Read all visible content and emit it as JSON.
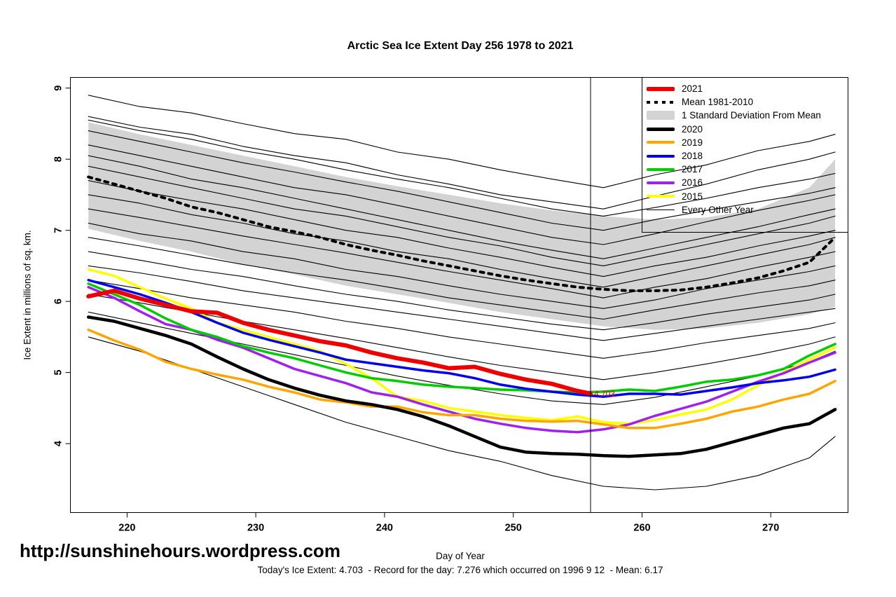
{
  "title": "Arctic Sea Ice Extent Day 256 1978 to 2021",
  "footer": {
    "url": "http://sunshinehours.wordpress.com",
    "stats": "Today's Ice Extent: 4.703  - Record for the day: 7.276 which occurred on 1996 9 12  - Mean: 6.17"
  },
  "chart_data": {
    "type": "line",
    "title": "Arctic Sea Ice Extent Day 256 1978 to 2021",
    "xlabel": "Day of Year",
    "ylabel": "Ice Extent in millions of sq. km.",
    "xlim": [
      215.6,
      276.0
    ],
    "ylim": [
      3.03,
      9.15
    ],
    "x_ticks": [
      220,
      230,
      240,
      250,
      260,
      270
    ],
    "y_ticks": [
      4,
      5,
      6,
      7,
      8,
      9
    ],
    "grid": false,
    "legend_position": "top-right",
    "vline_x": 256,
    "annotation": {
      "text": "4.703",
      "x": 256,
      "y": 4.703,
      "color": "#ee0000"
    },
    "band": {
      "label": "1 Standard Deviation From Mean",
      "color": "#d3d3d3",
      "days": [
        217,
        221,
        225,
        229,
        233,
        237,
        241,
        245,
        249,
        253,
        257,
        261,
        265,
        269,
        273,
        275
      ],
      "upper": [
        8.52,
        8.35,
        8.2,
        8.05,
        7.9,
        7.75,
        7.62,
        7.5,
        7.38,
        7.28,
        7.2,
        7.15,
        7.18,
        7.3,
        7.6,
        8.0
      ],
      "lower": [
        7.02,
        6.85,
        6.7,
        6.52,
        6.38,
        6.22,
        6.1,
        5.98,
        5.85,
        5.75,
        5.65,
        5.6,
        5.62,
        5.7,
        5.82,
        5.92
      ]
    },
    "mean": {
      "label": "Mean 1981-2010",
      "color": "#000000",
      "width": 4,
      "days": [
        217,
        219,
        221,
        223,
        225,
        227,
        229,
        231,
        233,
        235,
        237,
        239,
        241,
        243,
        245,
        247,
        249,
        251,
        253,
        255,
        257,
        259,
        261,
        263,
        265,
        267,
        269,
        271,
        273,
        275
      ],
      "values": [
        7.75,
        7.65,
        7.55,
        7.45,
        7.33,
        7.25,
        7.15,
        7.05,
        6.98,
        6.9,
        6.8,
        6.72,
        6.65,
        6.57,
        6.5,
        6.43,
        6.36,
        6.3,
        6.25,
        6.2,
        6.17,
        6.15,
        6.15,
        6.16,
        6.2,
        6.26,
        6.33,
        6.43,
        6.55,
        6.9
      ]
    },
    "series": [
      {
        "name": "2015",
        "color": "#ffff00",
        "width": 3.5,
        "days": [
          217,
          219,
          221,
          223,
          225,
          227,
          229,
          231,
          233,
          235,
          237,
          239,
          241,
          243,
          245,
          247,
          249,
          251,
          253,
          255,
          257,
          259,
          261,
          263,
          265,
          267,
          269,
          271,
          273,
          275
        ],
        "values": [
          6.45,
          6.36,
          6.2,
          6.04,
          5.9,
          5.7,
          5.6,
          5.5,
          5.4,
          5.3,
          5.12,
          4.92,
          4.66,
          4.6,
          4.5,
          4.45,
          4.4,
          4.36,
          4.33,
          4.38,
          4.3,
          4.28,
          4.33,
          4.41,
          4.48,
          4.62,
          4.82,
          5.0,
          5.18,
          5.35
        ]
      },
      {
        "name": "2016",
        "color": "#a020f0",
        "width": 3.5,
        "days": [
          217,
          219,
          221,
          223,
          225,
          227,
          229,
          231,
          233,
          235,
          237,
          239,
          241,
          243,
          245,
          247,
          249,
          251,
          253,
          255,
          257,
          259,
          261,
          263,
          265,
          267,
          269,
          271,
          273,
          275
        ],
        "values": [
          6.2,
          6.05,
          5.86,
          5.68,
          5.6,
          5.46,
          5.35,
          5.2,
          5.05,
          4.95,
          4.85,
          4.72,
          4.66,
          4.55,
          4.45,
          4.35,
          4.28,
          4.22,
          4.18,
          4.16,
          4.2,
          4.27,
          4.39,
          4.49,
          4.59,
          4.73,
          4.87,
          4.99,
          5.14,
          5.28
        ]
      },
      {
        "name": "2017",
        "color": "#00cc00",
        "width": 3.5,
        "days": [
          217,
          219,
          221,
          223,
          225,
          227,
          229,
          231,
          233,
          235,
          237,
          239,
          241,
          243,
          245,
          247,
          249,
          251,
          253,
          255,
          257,
          259,
          261,
          263,
          265,
          267,
          269,
          271,
          273,
          275
        ],
        "values": [
          6.25,
          6.1,
          5.95,
          5.76,
          5.6,
          5.5,
          5.37,
          5.28,
          5.2,
          5.1,
          5.0,
          4.92,
          4.88,
          4.83,
          4.8,
          4.78,
          4.76,
          4.75,
          4.73,
          4.72,
          4.73,
          4.76,
          4.74,
          4.8,
          4.87,
          4.9,
          4.96,
          5.05,
          5.24,
          5.4
        ]
      },
      {
        "name": "2018",
        "color": "#0000ee",
        "width": 3.5,
        "days": [
          217,
          219,
          221,
          223,
          225,
          227,
          229,
          231,
          233,
          235,
          237,
          239,
          241,
          243,
          245,
          247,
          249,
          251,
          253,
          255,
          257,
          259,
          261,
          263,
          265,
          267,
          269,
          271,
          273,
          275
        ],
        "values": [
          6.3,
          6.2,
          6.1,
          5.98,
          5.85,
          5.7,
          5.56,
          5.46,
          5.37,
          5.28,
          5.18,
          5.13,
          5.08,
          5.03,
          4.99,
          4.92,
          4.83,
          4.77,
          4.73,
          4.69,
          4.66,
          4.7,
          4.7,
          4.69,
          4.74,
          4.79,
          4.85,
          4.89,
          4.94,
          5.04
        ]
      },
      {
        "name": "2019",
        "color": "#ffa500",
        "width": 3.5,
        "days": [
          217,
          219,
          221,
          223,
          225,
          227,
          229,
          231,
          233,
          235,
          237,
          239,
          241,
          243,
          245,
          247,
          249,
          251,
          253,
          255,
          257,
          259,
          261,
          263,
          265,
          267,
          269,
          271,
          273,
          275
        ],
        "values": [
          5.6,
          5.45,
          5.32,
          5.15,
          5.05,
          4.97,
          4.9,
          4.8,
          4.72,
          4.62,
          4.58,
          4.52,
          4.52,
          4.44,
          4.4,
          4.4,
          4.35,
          4.32,
          4.31,
          4.32,
          4.27,
          4.22,
          4.22,
          4.28,
          4.35,
          4.45,
          4.52,
          4.62,
          4.7,
          4.88
        ]
      },
      {
        "name": "2020",
        "color": "#000000",
        "width": 4.5,
        "days": [
          217,
          219,
          221,
          223,
          225,
          227,
          229,
          231,
          233,
          235,
          237,
          239,
          241,
          243,
          245,
          247,
          249,
          251,
          253,
          255,
          257,
          259,
          261,
          263,
          265,
          267,
          269,
          271,
          273,
          275
        ],
        "values": [
          5.78,
          5.72,
          5.62,
          5.52,
          5.4,
          5.22,
          5.05,
          4.9,
          4.78,
          4.68,
          4.6,
          4.55,
          4.48,
          4.38,
          4.25,
          4.1,
          3.95,
          3.88,
          3.86,
          3.85,
          3.83,
          3.82,
          3.84,
          3.86,
          3.92,
          4.02,
          4.12,
          4.22,
          4.28,
          4.48
        ]
      },
      {
        "name": "2021",
        "color": "#ee0000",
        "width": 6,
        "days": [
          217,
          219,
          221,
          223,
          225,
          227,
          229,
          231,
          233,
          235,
          237,
          239,
          241,
          243,
          245,
          247,
          249,
          251,
          253,
          255,
          256
        ],
        "values": [
          6.07,
          6.15,
          6.04,
          5.95,
          5.86,
          5.84,
          5.7,
          5.6,
          5.52,
          5.44,
          5.38,
          5.28,
          5.2,
          5.14,
          5.06,
          5.08,
          4.98,
          4.9,
          4.84,
          4.74,
          4.703
        ]
      }
    ],
    "every_other_year": {
      "label": "Every Other Year",
      "color": "#000000",
      "width": 1.1,
      "days": [
        217,
        221,
        225,
        229,
        233,
        237,
        241,
        245,
        249,
        253,
        257,
        261,
        265,
        269,
        273,
        275
      ],
      "lines": [
        [
          8.9,
          8.74,
          8.65,
          8.5,
          8.36,
          8.28,
          8.1,
          8.0,
          7.85,
          7.72,
          7.6,
          7.78,
          7.92,
          8.12,
          8.25,
          8.35
        ],
        [
          8.6,
          8.45,
          8.35,
          8.18,
          8.05,
          7.95,
          7.78,
          7.65,
          7.5,
          7.4,
          7.3,
          7.48,
          7.65,
          7.85,
          8.0,
          8.1
        ],
        [
          8.55,
          8.4,
          8.28,
          8.12,
          8.0,
          7.85,
          7.72,
          7.6,
          7.45,
          7.3,
          7.2,
          7.32,
          7.45,
          7.6,
          7.72,
          7.8
        ],
        [
          8.4,
          8.25,
          8.1,
          7.95,
          7.82,
          7.68,
          7.55,
          7.4,
          7.25,
          7.1,
          7.0,
          7.15,
          7.28,
          7.4,
          7.52,
          7.6
        ],
        [
          8.2,
          8.05,
          7.9,
          7.75,
          7.6,
          7.5,
          7.35,
          7.2,
          7.05,
          6.9,
          6.8,
          6.95,
          7.12,
          7.28,
          7.42,
          7.5
        ],
        [
          8.05,
          7.9,
          7.72,
          7.6,
          7.45,
          7.3,
          7.15,
          7.0,
          6.85,
          6.72,
          6.6,
          6.75,
          6.9,
          7.05,
          7.22,
          7.3
        ],
        [
          7.9,
          7.75,
          7.6,
          7.45,
          7.3,
          7.2,
          7.05,
          6.9,
          6.78,
          6.62,
          6.5,
          6.65,
          6.8,
          6.95,
          7.1,
          7.2
        ],
        [
          7.7,
          7.55,
          7.42,
          7.3,
          7.15,
          7.0,
          6.9,
          6.75,
          6.62,
          6.48,
          6.35,
          6.5,
          6.62,
          6.78,
          6.92,
          7.0
        ],
        [
          7.5,
          7.38,
          7.22,
          7.1,
          6.95,
          6.85,
          6.7,
          6.6,
          6.45,
          6.32,
          6.2,
          6.35,
          6.5,
          6.65,
          6.8,
          6.9
        ],
        [
          7.3,
          7.18,
          7.05,
          6.92,
          6.8,
          6.68,
          6.55,
          6.42,
          6.3,
          6.18,
          6.05,
          6.2,
          6.32,
          6.48,
          6.62,
          6.7
        ],
        [
          7.1,
          6.95,
          6.85,
          6.7,
          6.6,
          6.45,
          6.35,
          6.22,
          6.1,
          6.0,
          5.9,
          6.02,
          6.18,
          6.3,
          6.42,
          6.5
        ],
        [
          6.9,
          6.78,
          6.65,
          6.52,
          6.4,
          6.3,
          6.18,
          6.05,
          5.95,
          5.85,
          5.75,
          5.88,
          6.0,
          6.12,
          6.22,
          6.3
        ],
        [
          6.7,
          6.58,
          6.45,
          6.35,
          6.22,
          6.1,
          6.0,
          5.88,
          5.78,
          5.68,
          5.6,
          5.7,
          5.82,
          5.92,
          6.02,
          6.1
        ],
        [
          6.5,
          6.4,
          6.28,
          6.15,
          6.05,
          5.95,
          5.85,
          5.75,
          5.65,
          5.55,
          5.45,
          5.55,
          5.65,
          5.75,
          5.85,
          5.9
        ],
        [
          6.3,
          6.18,
          6.05,
          5.95,
          5.85,
          5.72,
          5.62,
          5.5,
          5.4,
          5.3,
          5.2,
          5.3,
          5.42,
          5.52,
          5.62,
          5.7
        ],
        [
          6.1,
          5.98,
          5.85,
          5.72,
          5.6,
          5.48,
          5.35,
          5.22,
          5.1,
          5.0,
          4.9,
          5.0,
          5.12,
          5.25,
          5.4,
          5.5
        ],
        [
          5.85,
          5.7,
          5.55,
          5.4,
          5.25,
          5.1,
          4.95,
          4.82,
          4.7,
          4.6,
          4.55,
          4.65,
          4.8,
          4.95,
          5.15,
          5.3
        ],
        [
          5.5,
          5.3,
          5.05,
          4.8,
          4.55,
          4.3,
          4.1,
          3.9,
          3.75,
          3.55,
          3.4,
          3.35,
          3.4,
          3.55,
          3.8,
          4.1
        ]
      ]
    },
    "legend": {
      "items": [
        {
          "label": "2021",
          "swatch": "line",
          "color": "#ee0000",
          "weight": 6
        },
        {
          "label": "Mean 1981-2010",
          "swatch": "dashed",
          "color": "#000000",
          "weight": 4
        },
        {
          "label": "1 Standard Deviation From Mean",
          "swatch": "band",
          "color": "#d3d3d3",
          "weight": 13
        },
        {
          "label": "2020",
          "swatch": "line",
          "color": "#000000",
          "weight": 5
        },
        {
          "label": "2019",
          "swatch": "line",
          "color": "#ffa500",
          "weight": 4
        },
        {
          "label": "2018",
          "swatch": "line",
          "color": "#0000ee",
          "weight": 4
        },
        {
          "label": "2017",
          "swatch": "line",
          "color": "#00cc00",
          "weight": 4
        },
        {
          "label": "2016",
          "swatch": "line",
          "color": "#a020f0",
          "weight": 4
        },
        {
          "label": "2015",
          "swatch": "line",
          "color": "#ffff00",
          "weight": 4
        },
        {
          "label": "Every Other Year",
          "swatch": "line",
          "color": "#000000",
          "weight": 1
        }
      ]
    }
  }
}
